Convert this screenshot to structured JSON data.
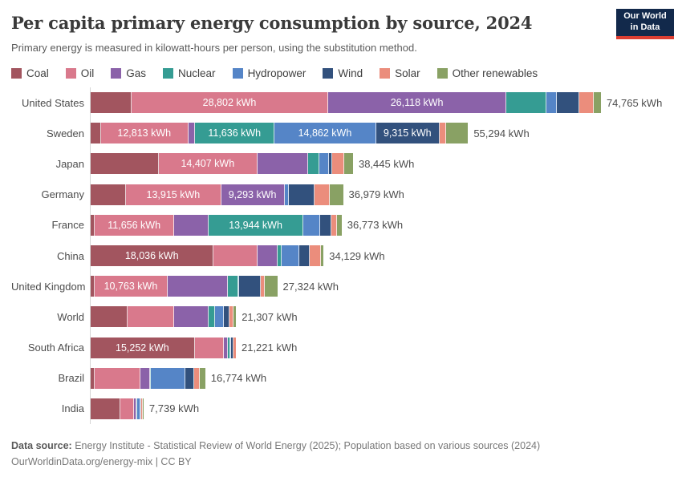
{
  "header": {
    "title": "Per capita primary energy consumption by source, 2024",
    "subtitle": "Primary energy is measured in kilowatt-hours per person, using the substitution method.",
    "logo": {
      "line1": "Our World",
      "line2": "in Data",
      "bg_color": "#12294B",
      "accent_color": "#DC3E32"
    }
  },
  "footer": {
    "source_label": "Data source:",
    "source_text": "Energy Institute - Statistical Review of World Energy (2025); Population based on various sources (2024)",
    "license_line": "OurWorldinData.org/energy-mix | CC BY"
  },
  "chart_data": {
    "type": "bar",
    "orientation": "horizontal",
    "stacked": true,
    "unit": "kWh",
    "xmax": 74765,
    "grid": false,
    "legend_position": "top",
    "sources": [
      "Coal",
      "Oil",
      "Gas",
      "Nuclear",
      "Hydropower",
      "Wind",
      "Solar",
      "Other renewables"
    ],
    "colors": [
      "#A2555F",
      "#D9798C",
      "#8B62A9",
      "#359C93",
      "#5585C7",
      "#32517D",
      "#EB8D7C",
      "#89A164"
    ],
    "rows": [
      {
        "label": "United States",
        "total": 74765,
        "total_label": "74,765 kWh",
        "values": [
          6000,
          28802,
          26118,
          5800,
          1630,
          3300,
          2100,
          1015
        ],
        "segment_labels": [
          null,
          "28,802 kWh",
          "26,118 kWh",
          null,
          null,
          null,
          null,
          null
        ]
      },
      {
        "label": "Sweden",
        "total": 55294,
        "total_label": "55,294 kWh",
        "values": [
          1500,
          12813,
          1000,
          11636,
          14862,
          9315,
          1000,
          3168
        ],
        "segment_labels": [
          null,
          "12,813 kWh",
          null,
          "11,636 kWh",
          "14,862 kWh",
          "9,315 kWh",
          null,
          null
        ]
      },
      {
        "label": "Japan",
        "total": 38445,
        "total_label": "38,445 kWh",
        "values": [
          10000,
          14407,
          7450,
          1700,
          1380,
          400,
          1850,
          1258
        ],
        "segment_labels": [
          null,
          "14,407 kWh",
          null,
          null,
          null,
          null,
          null,
          null
        ]
      },
      {
        "label": "Germany",
        "total": 36979,
        "total_label": "36,979 kWh",
        "values": [
          5200,
          13915,
          9293,
          0,
          650,
          3800,
          2200,
          1921
        ],
        "segment_labels": [
          null,
          "13,915 kWh",
          "9,293 kWh",
          null,
          null,
          null,
          null,
          null
        ]
      },
      {
        "label": "France",
        "total": 36773,
        "total_label": "36,773 kWh",
        "values": [
          600,
          11656,
          5000,
          13944,
          2400,
          1700,
          800,
          673
        ],
        "segment_labels": [
          null,
          "11,656 kWh",
          null,
          "13,944 kWh",
          null,
          null,
          null,
          null
        ]
      },
      {
        "label": "China",
        "total": 34129,
        "total_label": "34,129 kWh",
        "values": [
          18036,
          6450,
          2950,
          600,
          2500,
          1600,
          1600,
          393
        ],
        "segment_labels": [
          "18,036 kWh",
          null,
          null,
          null,
          null,
          null,
          null,
          null
        ]
      },
      {
        "label": "United Kingdom",
        "total": 27324,
        "total_label": "27,324 kWh",
        "values": [
          550,
          10763,
          8800,
          1550,
          100,
          3100,
          600,
          1861
        ],
        "segment_labels": [
          null,
          "10,763 kWh",
          null,
          null,
          null,
          null,
          null,
          null
        ]
      },
      {
        "label": "World",
        "total": 21307,
        "total_label": "21,307 kWh",
        "values": [
          5400,
          6850,
          5050,
          900,
          1300,
          800,
          600,
          407
        ],
        "segment_labels": [
          null,
          null,
          null,
          null,
          null,
          null,
          null,
          null
        ]
      },
      {
        "label": "South Africa",
        "total": 21221,
        "total_label": "21,221 kWh",
        "values": [
          15252,
          4300,
          500,
          450,
          60,
          300,
          359,
          0
        ],
        "segment_labels": [
          "15,252 kWh",
          null,
          null,
          null,
          null,
          null,
          null,
          null
        ]
      },
      {
        "label": "Brazil",
        "total": 16774,
        "total_label": "16,774 kWh",
        "values": [
          550,
          6700,
          1500,
          100,
          5000,
          1300,
          800,
          824
        ],
        "segment_labels": [
          null,
          null,
          null,
          null,
          null,
          null,
          null,
          null
        ]
      },
      {
        "label": "India",
        "total": 7739,
        "total_label": "7,739 kWh",
        "values": [
          4300,
          2000,
          450,
          100,
          400,
          150,
          200,
          139
        ],
        "segment_labels": [
          null,
          null,
          null,
          null,
          null,
          null,
          null,
          null
        ]
      }
    ]
  }
}
